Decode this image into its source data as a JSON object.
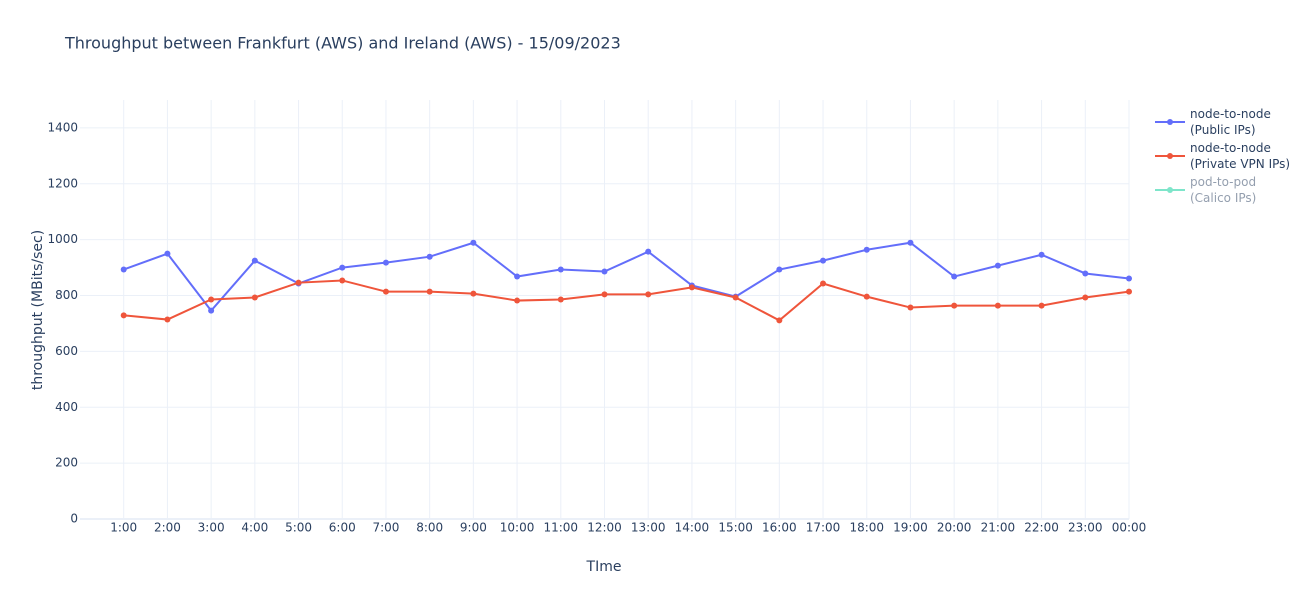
{
  "chart_data": {
    "type": "line",
    "title": "Throughput between Frankfurt (AWS) and Ireland (AWS)   -   15/09/2023",
    "xlabel": "TIme",
    "ylabel": "throughput (MBits/sec)",
    "categories": [
      "1:00",
      "2:00",
      "3:00",
      "4:00",
      "5:00",
      "6:00",
      "7:00",
      "8:00",
      "9:00",
      "10:00",
      "11:00",
      "12:00",
      "13:00",
      "14:00",
      "15:00",
      "16:00",
      "17:00",
      "18:00",
      "19:00",
      "20:00",
      "21:00",
      "22:00",
      "23:00",
      "00:00"
    ],
    "series": [
      {
        "name": "node-to-node\n(Public IPs)",
        "color": "#636efa",
        "visible": true,
        "values": [
          893,
          950,
          746,
          925,
          843,
          900,
          918,
          939,
          989,
          868,
          893,
          886,
          957,
          836,
          796,
          893,
          925,
          964,
          989,
          868,
          907,
          946,
          879,
          861
        ]
      },
      {
        "name": "node-to-node\n(Private VPN IPs)",
        "color": "#ef553b",
        "visible": true,
        "values": [
          729,
          714,
          786,
          793,
          846,
          854,
          814,
          814,
          807,
          782,
          786,
          804,
          804,
          829,
          793,
          711,
          843,
          796,
          757,
          764,
          764,
          764,
          793,
          814
        ]
      },
      {
        "name": "pod-to-pod\n(Calico IPs)",
        "color": "#00cc96",
        "visible": false
      }
    ],
    "ylim": [
      0,
      1500
    ],
    "yticks": [
      0,
      200,
      400,
      600,
      800,
      1000,
      1200,
      1400
    ],
    "grid": true,
    "legend": "right"
  }
}
